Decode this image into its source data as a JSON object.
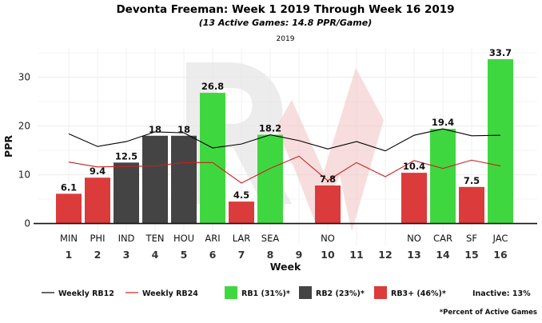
{
  "title": "Devonta Freeman: Week 1 2019 Through Week 16 2019",
  "subtitle": "(13 Active Games: 14.8 PPR/Game)",
  "season_label": "2019",
  "footnote": "*Percent of Active Games",
  "legend": {
    "rb12": "Weekly RB12",
    "rb24": "Weekly RB24",
    "rb1": "RB1 (31%)*",
    "rb2": "RB2 (23%)*",
    "rb3": "RB3+ (46%)*",
    "inactive": "Inactive: 13%"
  },
  "colors": {
    "rb1": "#3fd73f",
    "rb2": "#444444",
    "rb3": "#dc3b3b",
    "rb12_line": "#000000",
    "rb24_line": "#cc1f1f",
    "watermark": "#f2c6c6"
  },
  "chart_data": {
    "type": "bar",
    "title": "Devonta Freeman: Week 1 2019 Through Week 16 2019",
    "subtitle": "(13 Active Games: 14.8 PPR/Game)",
    "xlabel": "Week",
    "ylabel": "PPR",
    "ylim": [
      -4.5,
      36
    ],
    "yticks": [
      0,
      10,
      20,
      30
    ],
    "weeks": [
      "1",
      "2",
      "3",
      "4",
      "5",
      "6",
      "7",
      "8",
      "9",
      "10",
      "11",
      "12",
      "13",
      "14",
      "15",
      "16"
    ],
    "opponents": [
      "MIN",
      "PHI",
      "IND",
      "TEN",
      "HOU",
      "ARI",
      "LAR",
      "SEA",
      "",
      "NO",
      "",
      "",
      "NO",
      "CAR",
      "SF",
      "JAC"
    ],
    "values": [
      6.1,
      9.4,
      12.5,
      18,
      18,
      26.8,
      4.5,
      18.2,
      null,
      7.8,
      null,
      null,
      10.4,
      19.4,
      7.5,
      33.7
    ],
    "labels": [
      "6.1",
      "9.4",
      "12.5",
      "18",
      "18",
      "26.8",
      "4.5",
      "18.2",
      "",
      "7.8",
      "",
      "",
      "10.4",
      "19.4",
      "7.5",
      "33.7"
    ],
    "tiers": [
      "rb3",
      "rb3",
      "rb2",
      "rb2",
      "rb2",
      "rb1",
      "rb3",
      "rb1",
      "",
      "rb3",
      "",
      "",
      "rb3",
      "rb1",
      "rb3",
      "rb1"
    ],
    "series": [
      {
        "name": "Weekly RB12",
        "values": [
          18.4,
          15.8,
          16.8,
          18.8,
          18.6,
          15.5,
          16.3,
          18.2,
          17.0,
          15.3,
          16.8,
          14.9,
          18.1,
          19.4,
          18.0,
          18.1
        ]
      },
      {
        "name": "Weekly RB24",
        "values": [
          12.6,
          11.6,
          11.7,
          11.8,
          12.5,
          12.5,
          8.3,
          11.3,
          13.8,
          8.8,
          12.5,
          9.6,
          12.9,
          11.3,
          13.0,
          11.8
        ]
      }
    ],
    "grid": true,
    "legend_position": "bottom"
  }
}
